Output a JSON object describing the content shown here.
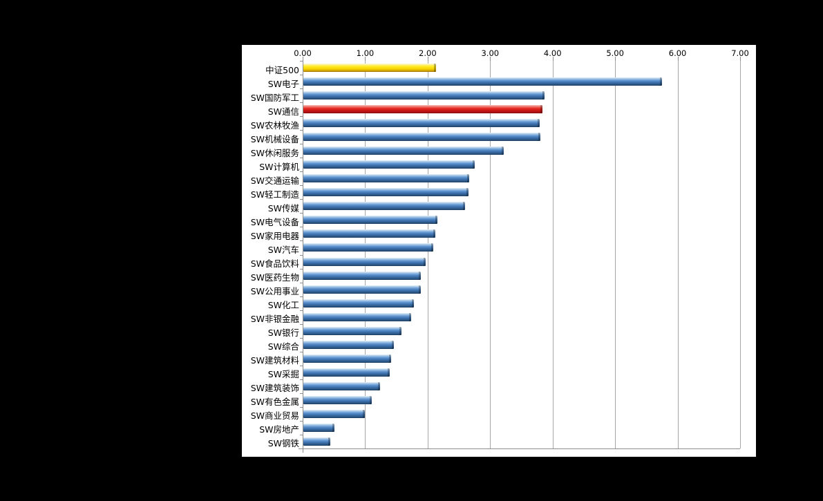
{
  "window": {
    "background_color": "#000000",
    "panel_color": "#ffffff"
  },
  "chart_data": {
    "type": "bar",
    "orientation": "horizontal",
    "title": "",
    "xlabel": "",
    "ylabel": "",
    "grid": true,
    "x_axis": {
      "position": "top",
      "min": 0,
      "max": 7,
      "tick_labels": [
        "0.00",
        "1.00",
        "2.00",
        "3.00",
        "4.00",
        "5.00",
        "6.00",
        "7.00"
      ]
    },
    "colors": {
      "blue": "#4e86c6",
      "yellow": "#ffe817",
      "red": "#e62a20"
    },
    "series": [
      {
        "label": "中证500",
        "value": 2.12,
        "color": "yellow"
      },
      {
        "label": "SW电子",
        "value": 5.74,
        "color": "blue"
      },
      {
        "label": "SW国防军工",
        "value": 3.86,
        "color": "blue"
      },
      {
        "label": "SW通信",
        "value": 3.83,
        "color": "red"
      },
      {
        "label": "SW农林牧渔",
        "value": 3.78,
        "color": "blue"
      },
      {
        "label": "SW机械设备",
        "value": 3.79,
        "color": "blue"
      },
      {
        "label": "SW休闲服务",
        "value": 3.21,
        "color": "blue"
      },
      {
        "label": "SW计算机",
        "value": 2.74,
        "color": "blue"
      },
      {
        "label": "SW交通运输",
        "value": 2.65,
        "color": "blue"
      },
      {
        "label": "SW轻工制造",
        "value": 2.64,
        "color": "blue"
      },
      {
        "label": "SW传媒",
        "value": 2.59,
        "color": "blue"
      },
      {
        "label": "SW电气设备",
        "value": 2.15,
        "color": "blue"
      },
      {
        "label": "SW家用电器",
        "value": 2.11,
        "color": "blue"
      },
      {
        "label": "SW汽车",
        "value": 2.08,
        "color": "blue"
      },
      {
        "label": "SW食品饮料",
        "value": 1.96,
        "color": "blue"
      },
      {
        "label": "SW医药生物",
        "value": 1.88,
        "color": "blue"
      },
      {
        "label": "SW公用事业",
        "value": 1.88,
        "color": "blue"
      },
      {
        "label": "SW化工",
        "value": 1.77,
        "color": "blue"
      },
      {
        "label": "SW非银金融",
        "value": 1.73,
        "color": "blue"
      },
      {
        "label": "SW银行",
        "value": 1.57,
        "color": "blue"
      },
      {
        "label": "SW综合",
        "value": 1.45,
        "color": "blue"
      },
      {
        "label": "SW建筑材料",
        "value": 1.4,
        "color": "blue"
      },
      {
        "label": "SW采掘",
        "value": 1.38,
        "color": "blue"
      },
      {
        "label": "SW建筑装饰",
        "value": 1.23,
        "color": "blue"
      },
      {
        "label": "SW有色金属",
        "value": 1.09,
        "color": "blue"
      },
      {
        "label": "SW商业贸易",
        "value": 0.98,
        "color": "blue"
      },
      {
        "label": "SW房地产",
        "value": 0.5,
        "color": "blue"
      },
      {
        "label": "SW钢铁",
        "value": 0.43,
        "color": "blue"
      }
    ]
  }
}
